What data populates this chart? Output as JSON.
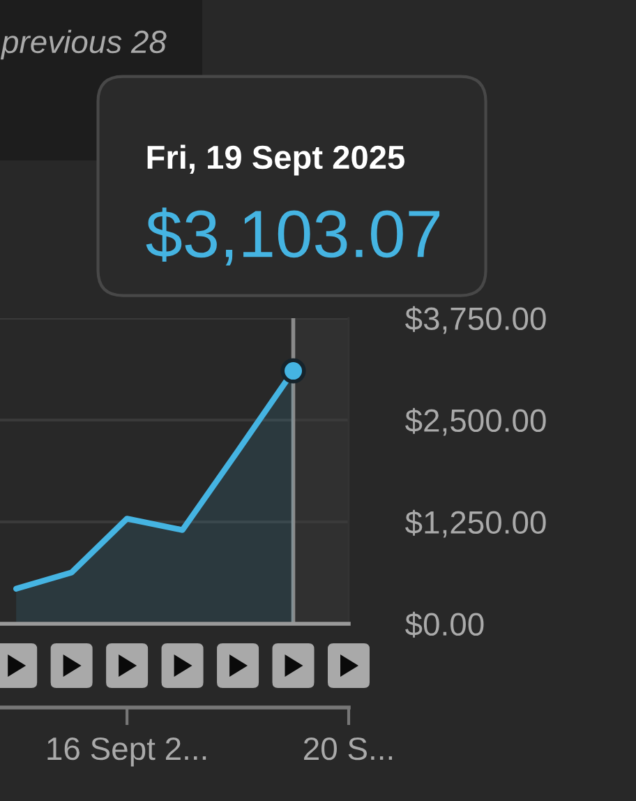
{
  "chart_data": {
    "type": "area",
    "x": [
      "2025-09-14",
      "2025-09-15",
      "2025-09-16",
      "2025-09-17",
      "2025-09-18",
      "2025-09-19"
    ],
    "series": [
      {
        "color": "#45b4e2",
        "values": [
          430,
          630,
          1290,
          1150,
          2120,
          3103.07
        ],
        "value_labels": [
          null,
          null,
          null,
          null,
          null,
          "$3,103.07"
        ]
      }
    ],
    "xlim": [
      "2025-09-13T17:00",
      "2025-09-20"
    ],
    "xticks": [
      {
        "value": "2025-09-16",
        "label": "16 Sept 2..."
      },
      {
        "value": "2025-09-20",
        "label": "20 S..."
      }
    ],
    "ylim": [
      0,
      3750
    ],
    "yticks": [
      {
        "value": 0,
        "label": "$0.00"
      },
      {
        "value": 1250,
        "label": "$1,250.00"
      },
      {
        "value": 2500,
        "label": "$2,500.00"
      },
      {
        "value": 3750,
        "label": "$3,750.00"
      }
    ],
    "grid": "y",
    "ref_lines": [
      {
        "axis": "x",
        "value": "2025-09-19",
        "color": "#8a8a8a"
      }
    ],
    "bands": [
      {
        "axis": "x",
        "from": "2025-09-19",
        "to": "2025-09-20",
        "color": "#303030"
      }
    ],
    "annotations": [
      "previous 28",
      "Fri, 19 Sept 2025"
    ]
  }
}
